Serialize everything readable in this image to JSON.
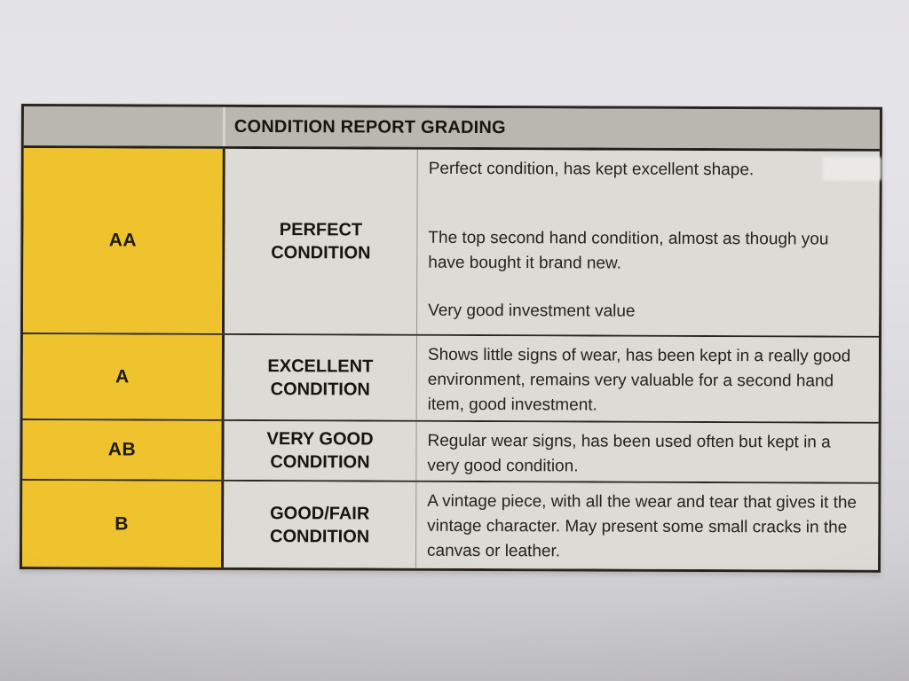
{
  "document": {
    "title": "CONDITION REPORT GRADING",
    "colors": {
      "photo_bg_top": "#e7e6ea",
      "photo_bg_bottom": "#cbcacd",
      "header_bg": "#bab7b0",
      "grade_bg": "#efc32e",
      "cell_bg": "#dcdbd6",
      "border_dark": "#2a241d",
      "divider_light": "#96938d",
      "text": "#201e1b"
    },
    "rows": [
      {
        "grade": "AA",
        "condition": "PERFECT CONDITION",
        "description": [
          "Perfect condition, has kept excellent shape.",
          "The top second hand condition, almost as though you have bought it brand new.",
          "Very good investment value"
        ]
      },
      {
        "grade": "A",
        "condition": "EXCELLENT CONDITION",
        "description": [
          "Shows little signs of wear, has been kept in a really good environment, remains very valuable for a second hand item, good investment."
        ]
      },
      {
        "grade": "AB",
        "condition": "VERY GOOD CONDITION",
        "description": [
          "Regular wear signs, has been used often but kept in a very good condition."
        ]
      },
      {
        "grade": "B",
        "condition": "GOOD/FAIR CONDITION",
        "description": [
          "A vintage piece, with all the wear and tear that gives it the vintage character. May present some small cracks in the canvas or leather."
        ]
      }
    ]
  }
}
